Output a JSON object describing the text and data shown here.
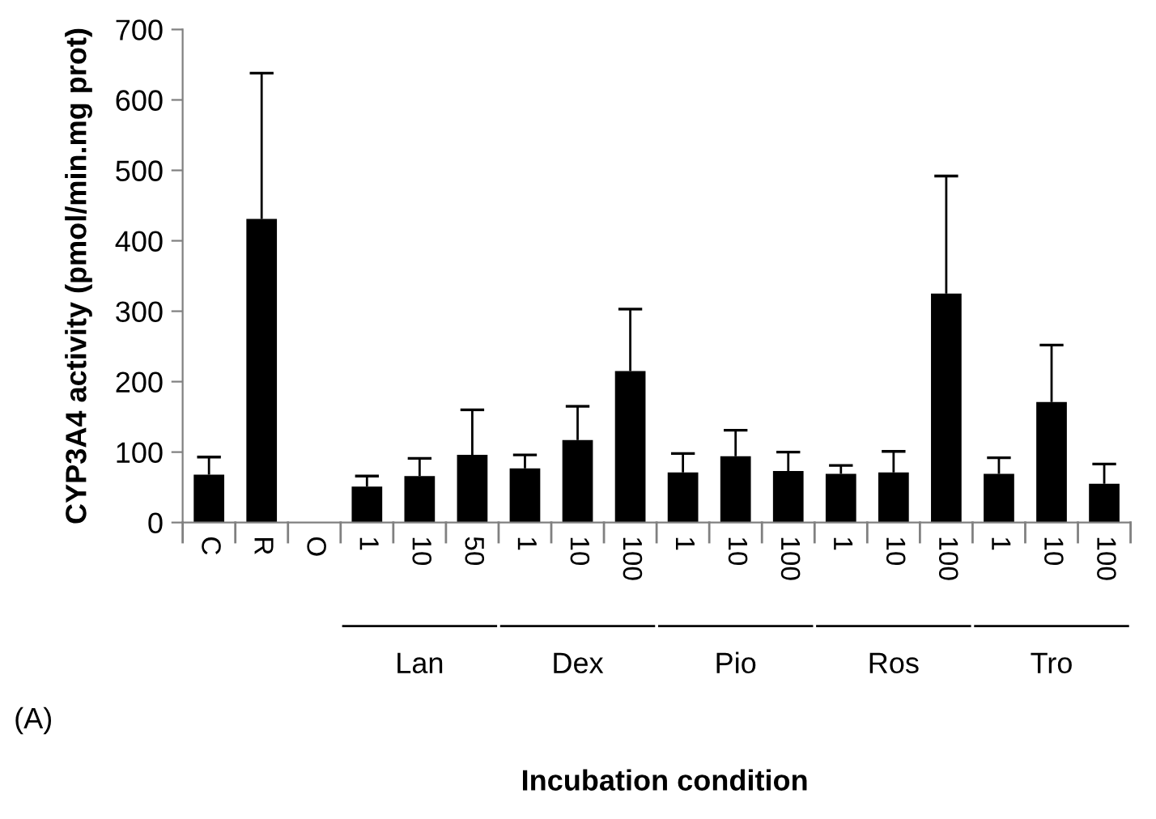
{
  "chart_data": {
    "type": "bar",
    "ylabel": "CYP3A4 activity (pmol/min.mg prot)",
    "categories": [
      "C",
      "R",
      "O",
      "1",
      "10",
      "50",
      "1",
      "10",
      "100",
      "1",
      "10",
      "100",
      "1",
      "10",
      "100",
      "1",
      "10",
      "100"
    ],
    "values": [
      68,
      431,
      0,
      51,
      66,
      96,
      77,
      117,
      215,
      71,
      94,
      73,
      69,
      71,
      325,
      69,
      171,
      55
    ],
    "errors": [
      [
        68,
        93
      ],
      [
        431,
        638
      ],
      null,
      [
        51,
        66
      ],
      [
        66,
        91
      ],
      [
        96,
        160
      ],
      [
        77,
        96
      ],
      [
        117,
        165
      ],
      [
        215,
        303
      ],
      [
        71,
        98
      ],
      [
        94,
        131
      ],
      [
        73,
        100
      ],
      [
        69,
        81
      ],
      [
        71,
        101
      ],
      [
        325,
        492
      ],
      [
        69,
        92
      ],
      [
        171,
        252
      ],
      [
        55,
        83
      ]
    ],
    "color": "#000000",
    "ylim": [
      0,
      700
    ],
    "yticks": [
      0,
      100,
      200,
      300,
      400,
      500,
      600,
      700
    ],
    "grid": false,
    "legend": false,
    "annotations": [
      "Lan",
      "Dex",
      "Pio",
      "Ros",
      "Tro",
      "(A)",
      "Incubation condition"
    ]
  }
}
